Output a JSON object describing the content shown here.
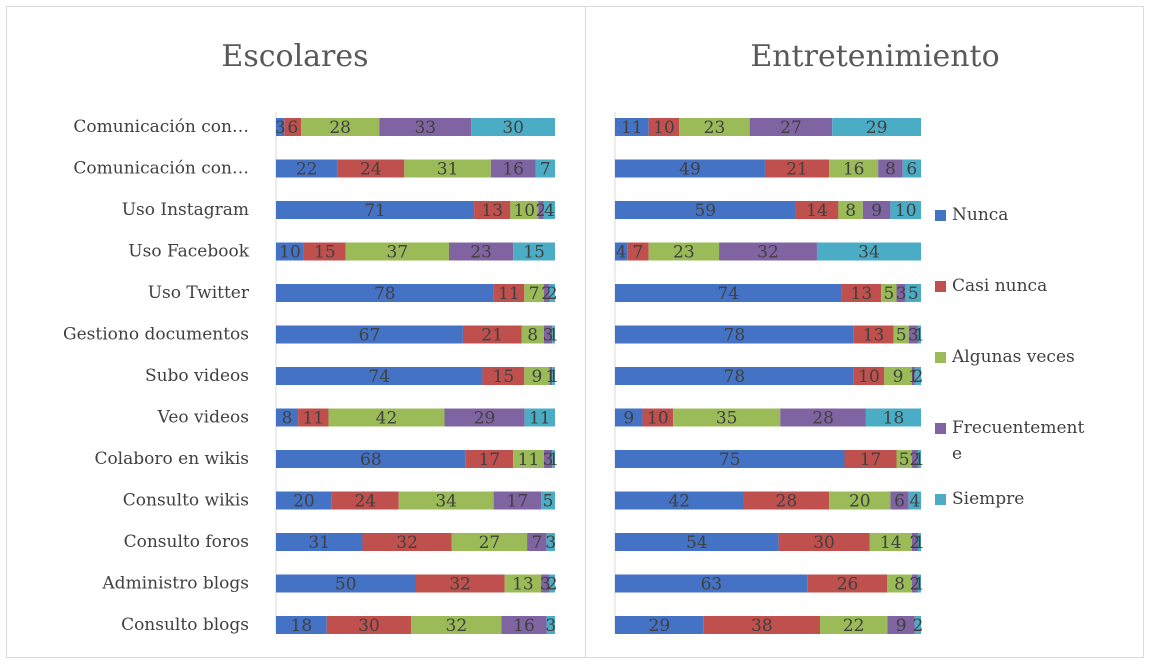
{
  "chart_data": [
    {
      "type": "bar",
      "stacked": "percent",
      "orientation": "horizontal",
      "title": "Escolares",
      "categories": [
        "Comunicación con…",
        "Comunicación con…",
        "Uso Instagram",
        "Uso Facebook",
        "Uso Twitter",
        "Gestiono documentos",
        "Subo videos",
        "Veo videos",
        "Colaboro en wikis",
        "Consulto wikis",
        "Consulto foros",
        "Administro blogs",
        "Consulto blogs"
      ],
      "series": [
        {
          "name": "Nunca",
          "values": [
            3,
            22,
            71,
            10,
            78,
            67,
            74,
            8,
            68,
            20,
            31,
            50,
            18
          ]
        },
        {
          "name": "Casi nunca",
          "values": [
            6,
            24,
            13,
            15,
            11,
            21,
            15,
            11,
            17,
            24,
            32,
            32,
            30
          ]
        },
        {
          "name": "Algunas veces",
          "values": [
            28,
            31,
            10,
            37,
            7,
            8,
            9,
            42,
            11,
            34,
            27,
            13,
            32
          ]
        },
        {
          "name": "Frecuentemente",
          "values": [
            33,
            16,
            2,
            23,
            2,
            3,
            1,
            29,
            3,
            17,
            7,
            3,
            16
          ]
        },
        {
          "name": "Siempre",
          "values": [
            30,
            7,
            4,
            15,
            2,
            1,
            1,
            11,
            1,
            5,
            3,
            2,
            3
          ]
        }
      ]
    },
    {
      "type": "bar",
      "stacked": "percent",
      "orientation": "horizontal",
      "title": "Entretenimiento",
      "categories": [
        "Comunicación con…",
        "Comunicación con…",
        "Uso Instagram",
        "Uso Facebook",
        "Uso Twitter",
        "Gestiono documentos",
        "Subo videos",
        "Veo videos",
        "Colaboro en wikis",
        "Consulto wikis",
        "Consulto foros",
        "Administro blogs",
        "Consulto blogs"
      ],
      "series": [
        {
          "name": "Nunca",
          "values": [
            11,
            49,
            59,
            4,
            74,
            78,
            78,
            9,
            75,
            42,
            54,
            63,
            29
          ]
        },
        {
          "name": "Casi nunca",
          "values": [
            10,
            21,
            14,
            7,
            13,
            13,
            10,
            10,
            17,
            28,
            30,
            26,
            38
          ]
        },
        {
          "name": "Algunas veces",
          "values": [
            23,
            16,
            8,
            23,
            5,
            5,
            9,
            35,
            5,
            20,
            14,
            8,
            22
          ]
        },
        {
          "name": "Frecuentemente",
          "values": [
            27,
            8,
            9,
            32,
            3,
            3,
            1,
            28,
            2,
            6,
            2,
            2,
            9
          ]
        },
        {
          "name": "Siempre",
          "values": [
            29,
            6,
            10,
            34,
            5,
            1,
            2,
            18,
            1,
            4,
            1,
            1,
            2
          ]
        }
      ]
    }
  ],
  "legend": {
    "position": "right",
    "items": [
      {
        "label": "Nunca",
        "color": "#4472c4"
      },
      {
        "label": "Casi nunca",
        "color": "#c0504d"
      },
      {
        "label": "Algunas veces",
        "color": "#9bbb59"
      },
      {
        "label": "Frecuentement",
        "label2": "e",
        "color": "#8064a2"
      },
      {
        "label": "Siempre",
        "color": "#4bacc6"
      }
    ]
  }
}
